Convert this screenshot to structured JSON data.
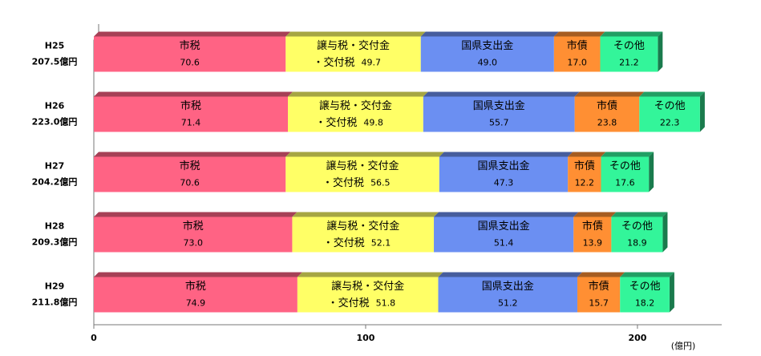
{
  "chart_data": {
    "type": "stacked-barh",
    "categories": [
      "H25",
      "H26",
      "H27",
      "H28",
      "H29"
    ],
    "total_labels": [
      "207.5億円",
      "223.0億円",
      "204.2億円",
      "209.3億円",
      "211.8億円"
    ],
    "series": [
      {
        "name": "市税",
        "color": "#ff6384",
        "values": [
          70.6,
          71.4,
          70.6,
          73.0,
          74.9
        ],
        "value_labels": [
          "70.6",
          "71.4",
          "70.6",
          "73.0",
          "74.9"
        ]
      },
      {
        "name": "譲与税・交付金",
        "name_suffix": "・交付税",
        "color": "#ffff66",
        "values": [
          49.7,
          49.8,
          56.5,
          52.1,
          51.8
        ],
        "value_labels": [
          "49.7",
          "49.8",
          "56.5",
          "52.1",
          "51.8"
        ]
      },
      {
        "name": "国県支出金",
        "color": "#6b8ff2",
        "values": [
          49.0,
          55.7,
          47.3,
          51.4,
          51.2
        ],
        "value_labels": [
          "49.0",
          "55.7",
          "47.3",
          "51.4",
          "51.2"
        ]
      },
      {
        "name": "市債",
        "color": "#ff8f33",
        "values": [
          17.0,
          23.8,
          12.2,
          13.9,
          15.7
        ],
        "value_labels": [
          "17.0",
          "23.8",
          "12.2",
          "13.9",
          "15.7"
        ]
      },
      {
        "name": "その他",
        "color": "#33f59a",
        "values": [
          21.2,
          22.3,
          17.6,
          18.9,
          18.2
        ],
        "value_labels": [
          "21.2",
          "22.3",
          "17.6",
          "18.9",
          "18.2"
        ]
      }
    ],
    "xlim": [
      0,
      231
    ],
    "xticks": [
      0,
      100,
      200
    ],
    "x_unit": "(億円)"
  }
}
